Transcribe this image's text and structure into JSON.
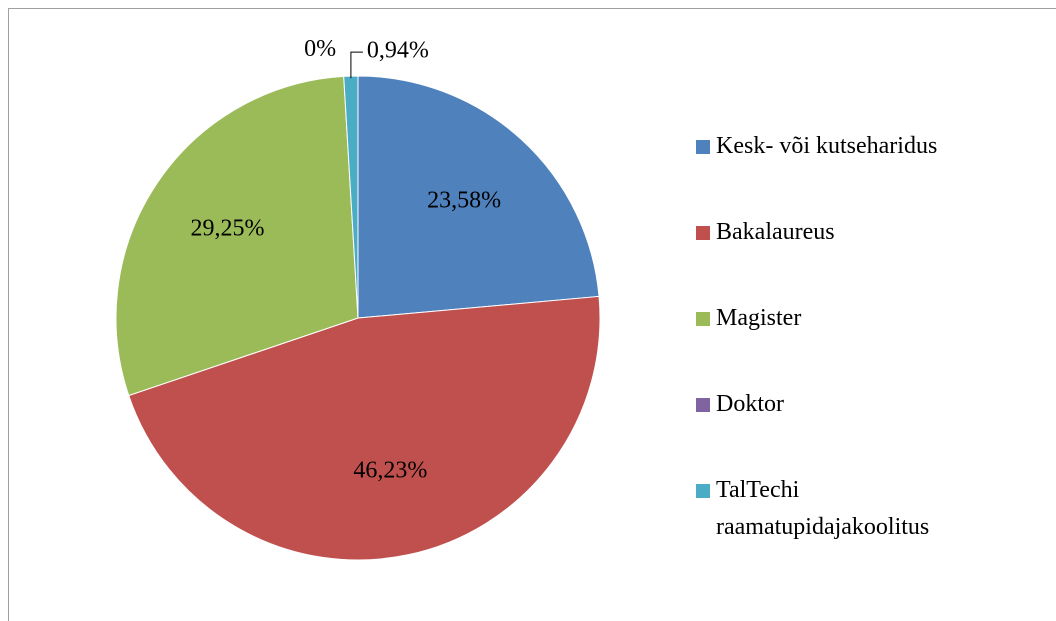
{
  "chart_data": {
    "type": "pie",
    "categories": [
      "Kesk- või kutseharidus",
      "Bakalaureus",
      "Magister",
      "Doktor",
      "TalTechi raamatupidajakoolitus"
    ],
    "values": [
      23.58,
      46.23,
      29.25,
      0,
      0.94
    ],
    "value_labels": [
      "23,58%",
      "46,23%",
      "29,25%",
      "0%",
      "0,94%"
    ],
    "colors": [
      "#4f81bd",
      "#c0504d",
      "#9bbb59",
      "#8064a2",
      "#4bacc6"
    ],
    "legend": "right"
  }
}
